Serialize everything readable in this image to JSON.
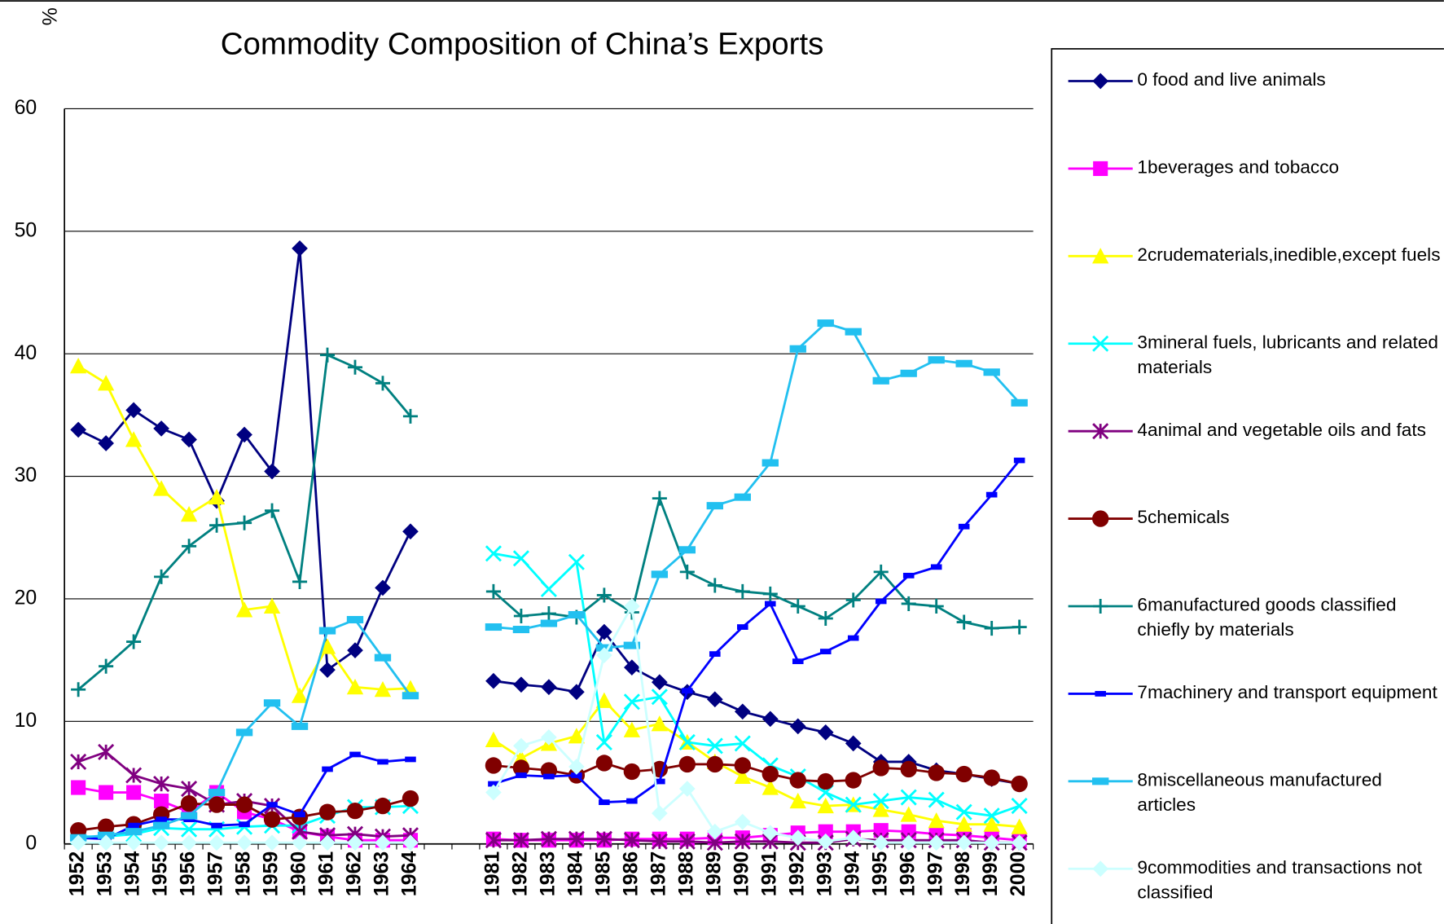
{
  "chart_data": {
    "type": "line",
    "title": "Commodity Composition of China’s Exports",
    "y_label": "%",
    "categories": [
      "1952",
      "1953",
      "1954",
      "1955",
      "1956",
      "1957",
      "1958",
      "1959",
      "1960",
      "1961",
      "1962",
      "1963",
      "1964",
      null,
      null,
      "1981",
      "1982",
      "1983",
      "1984",
      "1985",
      "1986",
      "1987",
      "1988",
      "1989",
      "1990",
      "1991",
      "1992",
      "1993",
      "1994",
      "1995",
      "1996",
      "1997",
      "1998",
      "1999",
      "2000"
    ],
    "ylim": [
      0,
      60
    ],
    "yticks": [
      0,
      10,
      20,
      30,
      40,
      50,
      60
    ],
    "grid": true,
    "legend": "right",
    "series": [
      {
        "name": "0 food and live animals",
        "color": "#000080",
        "marker": "diamond",
        "values": [
          33.8,
          32.7,
          35.4,
          33.9,
          33.0,
          28.0,
          33.4,
          30.4,
          48.6,
          14.2,
          15.8,
          20.9,
          25.5,
          null,
          null,
          13.3,
          13.0,
          12.8,
          12.4,
          17.3,
          14.4,
          13.2,
          12.4,
          11.8,
          10.8,
          10.2,
          9.6,
          9.1,
          8.2,
          6.7,
          6.7,
          6.0,
          5.7,
          5.3,
          4.9
        ]
      },
      {
        "name": "1beverages and tobacco",
        "color": "#FF00FF",
        "marker": "square",
        "values": [
          4.6,
          4.2,
          4.2,
          3.5,
          2.6,
          4.2,
          2.6,
          2.0,
          1.0,
          0.6,
          0.3,
          0.3,
          0.3,
          null,
          null,
          0.4,
          0.3,
          0.3,
          0.3,
          0.3,
          0.4,
          0.4,
          0.4,
          0.5,
          0.5,
          0.7,
          0.9,
          1.0,
          1.0,
          1.1,
          1.0,
          0.8,
          0.7,
          0.5,
          0.3
        ]
      },
      {
        "name": "2crudematerials,inedible,except fuels",
        "color": "#FFFF00",
        "marker": "triangle",
        "values": [
          39.0,
          37.6,
          33.0,
          29.0,
          26.9,
          28.3,
          19.1,
          19.4,
          12.1,
          16.1,
          12.8,
          12.6,
          12.7,
          null,
          null,
          8.5,
          7.0,
          8.2,
          8.8,
          11.7,
          9.3,
          9.8,
          8.3,
          6.7,
          5.5,
          4.6,
          3.5,
          3.1,
          3.2,
          2.8,
          2.4,
          1.9,
          1.6,
          1.6,
          1.4
        ]
      },
      {
        "name": "3mineral fuels, lubricants and related materials",
        "color": "#00FFFF",
        "marker": "x",
        "values": [
          0.6,
          0.6,
          0.8,
          1.3,
          1.2,
          1.2,
          1.4,
          1.5,
          1.5,
          2.3,
          3.0,
          3.0,
          3.1,
          null,
          null,
          23.7,
          23.3,
          20.8,
          23.0,
          8.3,
          11.6,
          12.0,
          8.3,
          8.0,
          8.2,
          6.4,
          5.5,
          4.2,
          3.2,
          3.5,
          3.8,
          3.6,
          2.6,
          2.3,
          3.1
        ]
      },
      {
        "name": "4animal and vegetable oils and fats",
        "color": "#800080",
        "marker": "star",
        "values": [
          6.7,
          7.5,
          5.6,
          4.9,
          4.5,
          3.2,
          3.5,
          3.1,
          1.0,
          0.7,
          0.8,
          0.6,
          0.7,
          null,
          null,
          0.3,
          0.3,
          0.4,
          0.4,
          0.4,
          0.3,
          0.2,
          0.2,
          0.1,
          0.2,
          0.2,
          0.1,
          0.1,
          0.4,
          0.3,
          0.3,
          0.3,
          0.3,
          0.1,
          0.1
        ]
      },
      {
        "name": "5chemicals",
        "color": "#800000",
        "marker": "circle",
        "values": [
          1.1,
          1.4,
          1.6,
          2.4,
          3.3,
          3.2,
          3.2,
          2.0,
          2.2,
          2.6,
          2.7,
          3.1,
          3.7,
          null,
          null,
          6.4,
          6.2,
          6.0,
          5.6,
          6.6,
          5.9,
          6.1,
          6.5,
          6.5,
          6.4,
          5.7,
          5.2,
          5.1,
          5.2,
          6.2,
          6.1,
          5.8,
          5.7,
          5.4,
          4.9
        ]
      },
      {
        "name": "6manufactured goods classified chiefly by materials",
        "color": "#008080",
        "marker": "plus",
        "values": [
          12.6,
          14.5,
          16.5,
          21.8,
          24.3,
          26.0,
          26.2,
          27.2,
          21.4,
          39.9,
          38.9,
          37.6,
          34.9,
          null,
          null,
          20.6,
          18.6,
          18.8,
          18.5,
          20.3,
          18.9,
          28.2,
          22.2,
          21.1,
          20.6,
          20.4,
          19.4,
          18.4,
          19.9,
          22.2,
          19.6,
          19.4,
          18.1,
          17.6,
          17.7
        ]
      },
      {
        "name": "7machinery and transport equipment",
        "color": "#0000FF",
        "marker": "dash",
        "values": [
          0.5,
          0.4,
          1.5,
          2.0,
          2.0,
          1.5,
          1.6,
          3.2,
          2.4,
          6.1,
          7.3,
          6.7,
          6.9,
          null,
          null,
          4.9,
          5.6,
          5.5,
          5.6,
          3.4,
          3.5,
          5.1,
          12.5,
          15.5,
          17.7,
          19.6,
          14.9,
          15.7,
          16.8,
          19.8,
          21.9,
          22.6,
          25.9,
          28.5,
          31.3
        ]
      },
      {
        "name": "8miscellaneous manufactured articles",
        "color": "#22C0F0",
        "marker": "rect",
        "values": [
          0.5,
          0.7,
          1.0,
          1.5,
          2.3,
          4.2,
          9.1,
          11.5,
          9.6,
          17.4,
          18.3,
          15.2,
          12.1,
          null,
          null,
          17.7,
          17.5,
          18.0,
          18.7,
          16.0,
          16.2,
          22.0,
          24.0,
          27.6,
          28.3,
          31.1,
          40.4,
          42.5,
          41.8,
          37.8,
          38.4,
          39.5,
          39.2,
          38.5,
          36.0
        ]
      },
      {
        "name": "9commodities and transactions not classified",
        "color": "#CCFFFF",
        "marker": "diamond",
        "values": [
          0.1,
          0.1,
          0.1,
          0.1,
          0.1,
          0.1,
          0.1,
          0.1,
          0.1,
          0.1,
          0.1,
          0.1,
          0.1,
          null,
          null,
          4.2,
          8.0,
          8.7,
          6.3,
          15.4,
          19.4,
          2.5,
          4.5,
          1.0,
          1.8,
          0.9,
          0.5,
          0.2,
          0.5,
          0.1,
          0.1,
          0.1,
          0.1,
          0.1,
          0.1
        ]
      }
    ]
  }
}
